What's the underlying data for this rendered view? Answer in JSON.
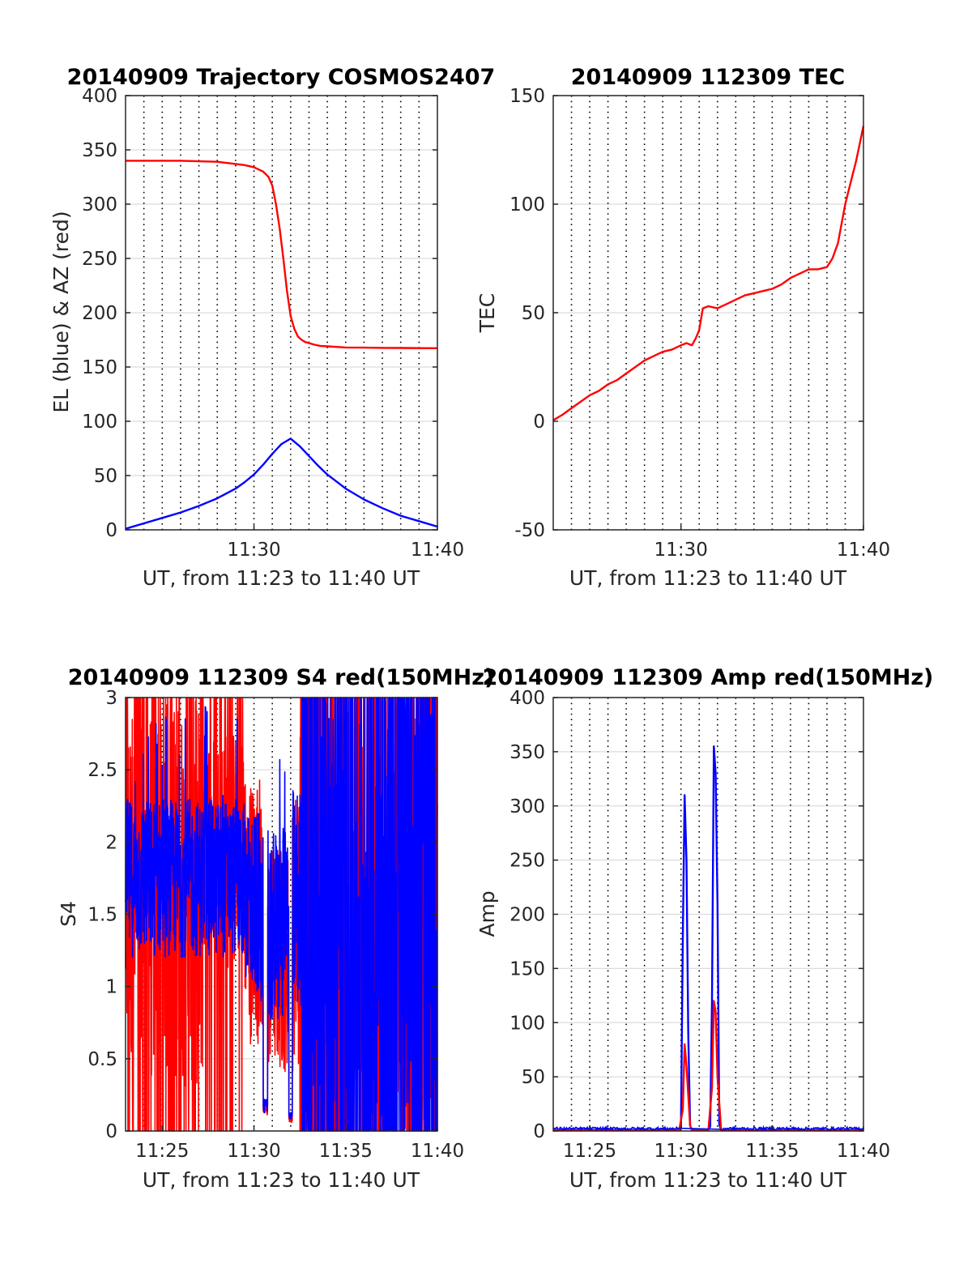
{
  "chart_data": [
    {
      "type": "line",
      "title": "20140909 Trajectory COSMOS2407",
      "xlabel": "UT, from 11:23 to 11:40 UT",
      "ylabel": "EL (blue) & AZ (red)",
      "xlim": [
        683,
        700
      ],
      "ylim": [
        0,
        400
      ],
      "xticks": [
        690,
        700
      ],
      "xticklabels": [
        "11:30",
        "11:40"
      ],
      "yticks": [
        0,
        50,
        100,
        150,
        200,
        250,
        300,
        350,
        400
      ],
      "yticklabels": [
        "0",
        "50",
        "100",
        "150",
        "200",
        "250",
        "300",
        "350",
        "400"
      ],
      "xgrid_minutes": [
        684,
        685,
        686,
        687,
        688,
        689,
        690,
        691,
        692,
        693,
        694,
        695,
        696,
        697,
        698,
        699
      ],
      "ygrid": true,
      "colors": {
        "az": "#ff0000",
        "el": "#0000ff"
      },
      "series": [
        {
          "key": "az",
          "color": "#ff0000",
          "x": [
            683.0,
            684.0,
            685.0,
            686.0,
            687.0,
            688.0,
            689.0,
            689.5,
            690.0,
            690.5,
            690.8,
            691.0,
            691.2,
            691.4,
            691.6,
            691.8,
            692.0,
            692.2,
            692.4,
            692.6,
            692.8,
            693.0,
            693.3,
            693.6,
            694.0,
            694.5,
            695.0,
            696.0,
            697.0,
            698.0,
            699.0,
            700.0
          ],
          "y": [
            340,
            340,
            340,
            340,
            339.5,
            339,
            337,
            336,
            334,
            330,
            325,
            317,
            300,
            278,
            250,
            220,
            197,
            185,
            178,
            175,
            173,
            172,
            170.5,
            169.5,
            169,
            168.5,
            168,
            167.8,
            167.6,
            167.5,
            167.4,
            167.3
          ]
        },
        {
          "key": "el",
          "color": "#0000ff",
          "x": [
            683.0,
            684.0,
            685.0,
            686.0,
            687.0,
            688.0,
            689.0,
            689.5,
            690.0,
            690.5,
            691.0,
            691.5,
            692.0,
            692.5,
            693.0,
            693.5,
            694.0,
            695.0,
            696.0,
            697.0,
            698.0,
            699.0,
            700.0
          ],
          "y": [
            1,
            6,
            11,
            16,
            22,
            29,
            38,
            44,
            51,
            60,
            70,
            79,
            84,
            77,
            68,
            59,
            51,
            38,
            28,
            20,
            13,
            8,
            3
          ]
        }
      ]
    },
    {
      "type": "line",
      "title": "20140909 112309 TEC",
      "xlabel": "UT, from 11:23 to 11:40 UT",
      "ylabel": "TEC",
      "xlim": [
        683,
        700
      ],
      "ylim": [
        -50,
        150
      ],
      "xticks": [
        690,
        700
      ],
      "xticklabels": [
        "11:30",
        "11:40"
      ],
      "yticks": [
        -50,
        0,
        50,
        100,
        150
      ],
      "yticklabels": [
        "-50",
        "0",
        "50",
        "100",
        "150"
      ],
      "xgrid_minutes": [
        684,
        685,
        686,
        687,
        688,
        689,
        690,
        691,
        692,
        693,
        694,
        695,
        696,
        697,
        698,
        699
      ],
      "ygrid": true,
      "colors": {
        "tec": "#ff0000"
      },
      "series": [
        {
          "key": "tec",
          "color": "#ff0000",
          "x": [
            683.0,
            683.5,
            684.0,
            684.5,
            685.0,
            685.5,
            686.0,
            686.5,
            687.0,
            687.5,
            688.0,
            688.5,
            689.0,
            689.5,
            690.0,
            690.3,
            690.6,
            690.8,
            691.0,
            691.2,
            691.5,
            692.0,
            692.5,
            693.0,
            693.5,
            694.0,
            694.5,
            695.0,
            695.5,
            696.0,
            696.5,
            697.0,
            697.5,
            698.0,
            698.3,
            698.6,
            699.0,
            699.3,
            699.6,
            700.0
          ],
          "y": [
            0.5,
            3,
            6,
            9,
            12,
            14,
            17,
            19,
            22,
            25,
            28,
            30,
            32,
            33,
            35,
            36,
            35,
            38,
            42,
            52,
            53,
            52,
            54,
            56,
            58,
            59,
            60,
            61,
            63,
            66,
            68,
            70,
            70,
            71,
            75,
            82,
            100,
            110,
            120,
            136
          ]
        }
      ]
    },
    {
      "type": "line",
      "title": "20140909 112309 S4 red(150MHz)",
      "xlabel": "UT, from 11:23 to 11:40 UT",
      "ylabel": "S4",
      "xlim": [
        683,
        700
      ],
      "ylim": [
        0,
        3
      ],
      "xticks": [
        685,
        690,
        695,
        700
      ],
      "xticklabels": [
        "11:25",
        "11:30",
        "11:35",
        "11:40"
      ],
      "yticks": [
        0,
        0.5,
        1,
        1.5,
        2,
        2.5,
        3
      ],
      "yticklabels": [
        "0",
        "0.5",
        "1",
        "1.5",
        "2",
        "2.5",
        "3"
      ],
      "xgrid_minutes": [
        684,
        685,
        686,
        687,
        688,
        689,
        690,
        691,
        692,
        693,
        694,
        695,
        696,
        697,
        698,
        699
      ],
      "ygrid": true,
      "colors": {
        "red": "#ff0000",
        "blue": "#0000ff"
      }
    },
    {
      "type": "line",
      "title": "20140909 112309 Amp red(150MHz)",
      "xlabel": "UT, from 11:23 to 11:40 UT",
      "ylabel": "Amp",
      "xlim": [
        683,
        700
      ],
      "ylim": [
        0,
        400
      ],
      "xticks": [
        685,
        690,
        695,
        700
      ],
      "xticklabels": [
        "11:25",
        "11:30",
        "11:35",
        "11:40"
      ],
      "yticks": [
        0,
        50,
        100,
        150,
        200,
        250,
        300,
        350,
        400
      ],
      "yticklabels": [
        "0",
        "50",
        "100",
        "150",
        "200",
        "250",
        "300",
        "350",
        "400"
      ],
      "xgrid_minutes": [
        684,
        685,
        686,
        687,
        688,
        689,
        690,
        691,
        692,
        693,
        694,
        695,
        696,
        697,
        698,
        699
      ],
      "ygrid": true,
      "colors": {
        "red": "#ff0000",
        "blue": "#0000ff"
      },
      "series": [
        {
          "key": "blue",
          "color": "#0000ff",
          "x": [
            683.0,
            689.9,
            690.0,
            690.1,
            690.2,
            690.3,
            690.4,
            690.5,
            690.6,
            691.5,
            691.6,
            691.7,
            691.8,
            691.9,
            692.0,
            692.1,
            692.2,
            700.0
          ],
          "y": [
            1,
            1,
            3,
            180,
            310,
            250,
            90,
            5,
            1,
            1,
            4,
            120,
            355,
            330,
            210,
            6,
            1,
            1
          ]
        },
        {
          "key": "red",
          "color": "#ff0000",
          "x": [
            683.0,
            689.9,
            690.1,
            690.2,
            690.3,
            690.5,
            690.6,
            691.5,
            691.7,
            691.8,
            691.9,
            692.0,
            692.2,
            700.0
          ],
          "y": [
            0.5,
            0.5,
            20,
            80,
            60,
            5,
            0.5,
            0.5,
            40,
            120,
            110,
            50,
            0.5,
            0.5
          ]
        }
      ]
    }
  ]
}
